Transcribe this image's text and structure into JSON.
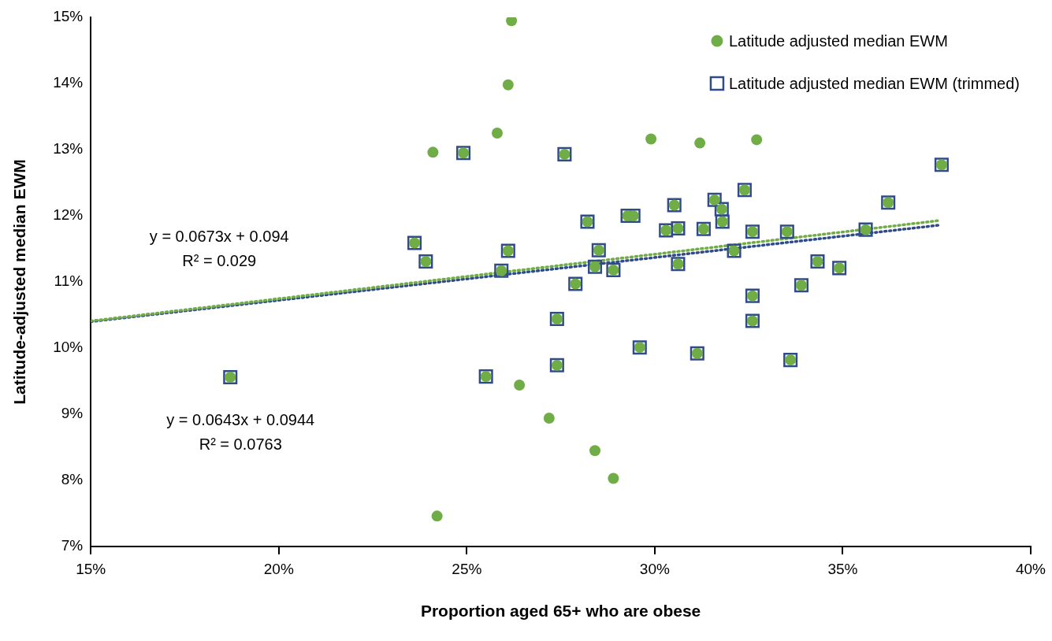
{
  "chart_data": {
    "type": "scatter",
    "xlabel": "Proportion aged 65+ who are obese",
    "ylabel": "Latitude-adjusted median EWM",
    "xlim": [
      0.15,
      0.4
    ],
    "ylim": [
      0.07,
      0.15
    ],
    "xticks": [
      {
        "value": 0.15,
        "label": "15%"
      },
      {
        "value": 0.2,
        "label": "20%"
      },
      {
        "value": 0.25,
        "label": "25%"
      },
      {
        "value": 0.3,
        "label": "30%"
      },
      {
        "value": 0.35,
        "label": "35%"
      },
      {
        "value": 0.4,
        "label": "40%"
      }
    ],
    "yticks": [
      {
        "value": 0.07,
        "label": "7%"
      },
      {
        "value": 0.08,
        "label": "8%"
      },
      {
        "value": 0.09,
        "label": "9%"
      },
      {
        "value": 0.1,
        "label": "10%"
      },
      {
        "value": 0.11,
        "label": "11%"
      },
      {
        "value": 0.12,
        "label": "12%"
      },
      {
        "value": 0.13,
        "label": "13%"
      },
      {
        "value": 0.14,
        "label": "14%"
      },
      {
        "value": 0.15,
        "label": "15%"
      }
    ],
    "grid": false,
    "legend": "top right",
    "annotations": [
      "y = 0.0673x + 0.094",
      "R² = 0.029",
      "y = 0.0643x + 0.0944",
      "R² = 0.0763"
    ],
    "series": [
      {
        "name": "Latitude adjusted median EWM (trimmed)",
        "color": "#2f4b8a",
        "marker": "square",
        "x": [
          0.1871,
          0.2361,
          0.2391,
          0.2491,
          0.2551,
          0.2592,
          0.261,
          0.274,
          0.274,
          0.276,
          0.2789,
          0.2821,
          0.2841,
          0.2851,
          0.289,
          0.2928,
          0.2943,
          0.296,
          0.303,
          0.3052,
          0.3062,
          0.3062,
          0.3113,
          0.313,
          0.3159,
          0.3178,
          0.318,
          0.3211,
          0.3239,
          0.326,
          0.326,
          0.326,
          0.3352,
          0.3361,
          0.339,
          0.3433,
          0.3491,
          0.3561,
          0.3621,
          0.3763
        ],
        "values": [
          0.0956,
          0.1159,
          0.1131,
          0.1295,
          0.0957,
          0.1117,
          0.1147,
          0.1044,
          0.0974,
          0.1293,
          0.1097,
          0.1191,
          0.1123,
          0.1148,
          0.1118,
          0.12,
          0.12,
          0.1001,
          0.1178,
          0.1216,
          0.1181,
          0.1127,
          0.0992,
          0.118,
          0.1224,
          0.121,
          0.1191,
          0.1147,
          0.1239,
          0.1079,
          0.1041,
          0.1176,
          0.1176,
          0.0982,
          0.1095,
          0.1131,
          0.1121,
          0.1179,
          0.122,
          0.1277
        ]
      },
      {
        "name": "Latitude adjusted median EWM",
        "color": "#70ad47",
        "marker": "circle",
        "x": [
          0.1871,
          0.2361,
          0.2391,
          0.241,
          0.2421,
          0.2491,
          0.2551,
          0.2581,
          0.2592,
          0.261,
          0.261,
          0.2619,
          0.264,
          0.2719,
          0.274,
          0.274,
          0.276,
          0.2789,
          0.2821,
          0.2841,
          0.2841,
          0.2851,
          0.289,
          0.289,
          0.2928,
          0.2943,
          0.296,
          0.299,
          0.303,
          0.3052,
          0.3062,
          0.3062,
          0.312,
          0.3113,
          0.313,
          0.3159,
          0.3178,
          0.318,
          0.3211,
          0.3239,
          0.326,
          0.326,
          0.326,
          0.3271,
          0.3352,
          0.3361,
          0.339,
          0.3433,
          0.3491,
          0.3561,
          0.3621,
          0.3763
        ],
        "values": [
          0.0956,
          0.1159,
          0.1131,
          0.1296,
          0.0746,
          0.1295,
          0.0957,
          0.1325,
          0.1117,
          0.1398,
          0.1147,
          0.1495,
          0.0944,
          0.0894,
          0.1044,
          0.0974,
          0.1293,
          0.1097,
          0.1191,
          0.1123,
          0.0845,
          0.1148,
          0.1118,
          0.0803,
          0.12,
          0.12,
          0.1001,
          0.1316,
          0.1178,
          0.1216,
          0.1181,
          0.1127,
          0.131,
          0.0992,
          0.118,
          0.1224,
          0.121,
          0.1191,
          0.1147,
          0.1239,
          0.1079,
          0.1041,
          0.1176,
          0.1315,
          0.1176,
          0.0982,
          0.1095,
          0.1131,
          0.1121,
          0.1179,
          0.122,
          0.1277
        ]
      },
      {
        "type": "line",
        "color": "#70ad47",
        "line_style": "dotted",
        "marker": "none",
        "x": [
          0.15,
          0.376
        ],
        "values": [
          0.1041,
          0.1193
        ]
      },
      {
        "type": "line",
        "color": "#2f4b8a",
        "line_style": "dotted",
        "marker": "none",
        "x": [
          0.15,
          0.376
        ],
        "values": [
          0.104,
          0.1186
        ]
      }
    ]
  }
}
